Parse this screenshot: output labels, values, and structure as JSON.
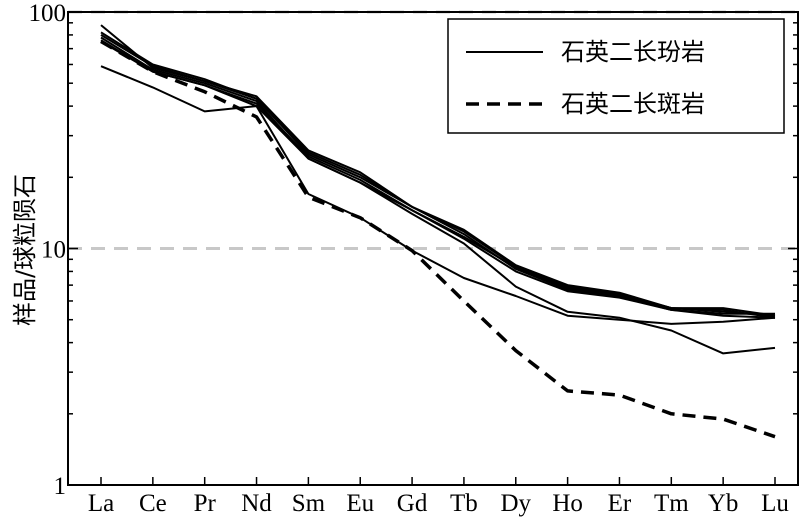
{
  "chart_data": {
    "type": "line",
    "title": "",
    "xlabel": "",
    "ylabel": "样品/球粒陨石",
    "yscale": "log",
    "ylim": [
      1,
      100
    ],
    "yticks": [
      {
        "value": 1,
        "label": "1"
      },
      {
        "value": 10,
        "label": "10"
      },
      {
        "value": 100,
        "label": "100"
      }
    ],
    "grid": "dashed gray horizontal lines at 10 and 100",
    "legend_position": "top-right",
    "categories": [
      "La",
      "Ce",
      "Pr",
      "Nd",
      "Sm",
      "Eu",
      "Gd",
      "Tb",
      "Dy",
      "Ho",
      "Er",
      "Tm",
      "Yb",
      "Lu"
    ],
    "legend": [
      {
        "label": "石英二长玢岩",
        "style": "solid"
      },
      {
        "label": "石英二长斑岩",
        "style": "dashed"
      }
    ],
    "series": [
      {
        "group": "石英二长玢岩",
        "style": "solid",
        "values": [
          88,
          58,
          51,
          44,
          26,
          21,
          15,
          12,
          8.5,
          7.0,
          6.5,
          5.6,
          5.6,
          5.2
        ]
      },
      {
        "group": "石英二长玢岩",
        "style": "solid",
        "values": [
          82,
          60,
          52,
          43,
          25,
          20,
          15,
          11.5,
          8.2,
          6.7,
          6.3,
          5.5,
          5.3,
          5.3
        ]
      },
      {
        "group": "石英二长玢岩",
        "style": "solid",
        "values": [
          78,
          57,
          50,
          42,
          24,
          19,
          14.5,
          11,
          8.0,
          6.6,
          6.2,
          5.5,
          5.2,
          5.1
        ]
      },
      {
        "group": "石英二长玢岩",
        "style": "solid",
        "values": [
          75,
          56,
          49,
          41,
          24.5,
          19.5,
          14.5,
          11.2,
          8.3,
          6.8,
          6.4,
          5.6,
          5.4,
          5.2
        ]
      },
      {
        "group": "石英二长玢岩",
        "style": "solid",
        "values": [
          80,
          59,
          51,
          43,
          25.5,
          20.5,
          15,
          11.8,
          8.4,
          6.9,
          6.4,
          5.6,
          5.5,
          5.1
        ]
      },
      {
        "group": "石英二长玢岩",
        "style": "solid",
        "values": [
          59,
          48,
          38,
          40,
          17,
          13.5,
          9.8,
          7.5,
          6.3,
          5.2,
          5.0,
          4.8,
          4.9,
          5.1
        ]
      },
      {
        "group": "石英二长玢岩",
        "style": "solid",
        "values": [
          76,
          56,
          49,
          40,
          24,
          19,
          14,
          10.5,
          6.9,
          5.4,
          5.1,
          4.5,
          3.6,
          3.8
        ]
      },
      {
        "group": "石英二长斑岩",
        "style": "dashed",
        "values": [
          75,
          56,
          46,
          36,
          16.5,
          13.5,
          9.8,
          6.0,
          3.7,
          2.5,
          2.4,
          2.0,
          1.9,
          1.6
        ]
      }
    ]
  }
}
